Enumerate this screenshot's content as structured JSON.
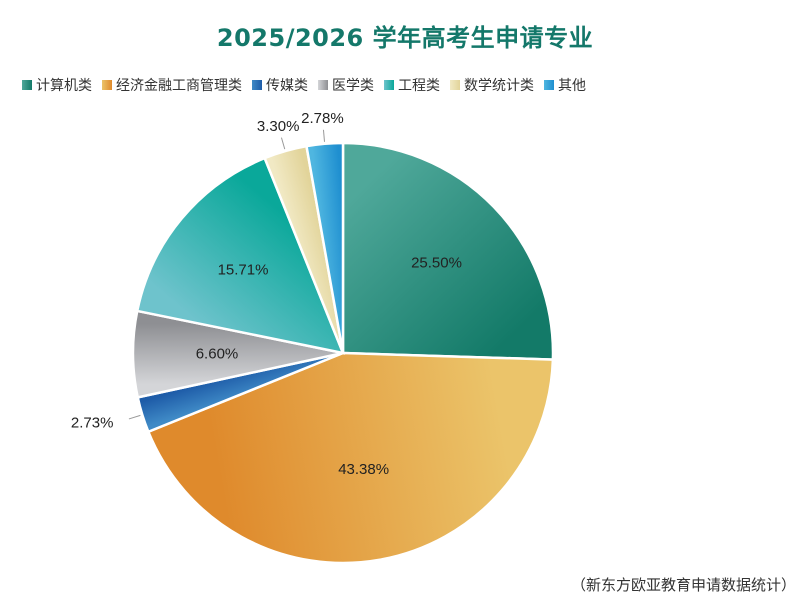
{
  "chart_data": {
    "type": "pie",
    "title": "2025/2026 学年高考生申请专业",
    "slices": [
      {
        "label": "计算机类",
        "value": 25.5,
        "display": "25.50%",
        "color": "#137a68",
        "color2": "#4fa89a",
        "label_pos": "inside"
      },
      {
        "label": "经济金融工商管理类",
        "value": 43.38,
        "display": "43.38%",
        "color": "#df8a2c",
        "color2": "#ebc46a",
        "label_pos": "inside"
      },
      {
        "label": "传媒类",
        "value": 2.73,
        "display": "2.73%",
        "color": "#1e5ca8",
        "color2": "#3f8ac6",
        "label_pos": "outside"
      },
      {
        "label": "医学类",
        "value": 6.6,
        "display": "6.60%",
        "color": "#8e8f93",
        "color2": "#d4d5d8",
        "label_pos": "inside"
      },
      {
        "label": "工程类",
        "value": 15.71,
        "display": "15.71%",
        "color": "#0aa89a",
        "color2": "#6ec3cc",
        "label_pos": "inside"
      },
      {
        "label": "数学统计类",
        "value": 3.3,
        "display": "3.30%",
        "color": "#e2d49a",
        "color2": "#f1e9c4",
        "label_pos": "outside"
      },
      {
        "label": "其他",
        "value": 2.78,
        "display": "2.78%",
        "color": "#1f8fd0",
        "color2": "#4fb6e0",
        "label_pos": "outside"
      }
    ],
    "legend_position": "top-left"
  },
  "source_note": "（新东方欧亚教育申请数据统计）"
}
